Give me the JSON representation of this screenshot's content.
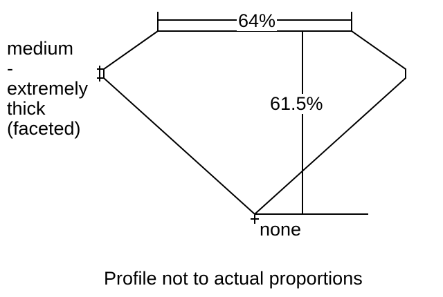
{
  "labels": {
    "table_percent": "64%",
    "depth_percent": "61.5%",
    "girdle": [
      "medium",
      "-",
      "extremely",
      "thick",
      "(faceted)"
    ],
    "culet": "none",
    "caption": "Profile not to actual proportions"
  },
  "colors": {
    "line": "#000000",
    "background": "#ffffff"
  }
}
